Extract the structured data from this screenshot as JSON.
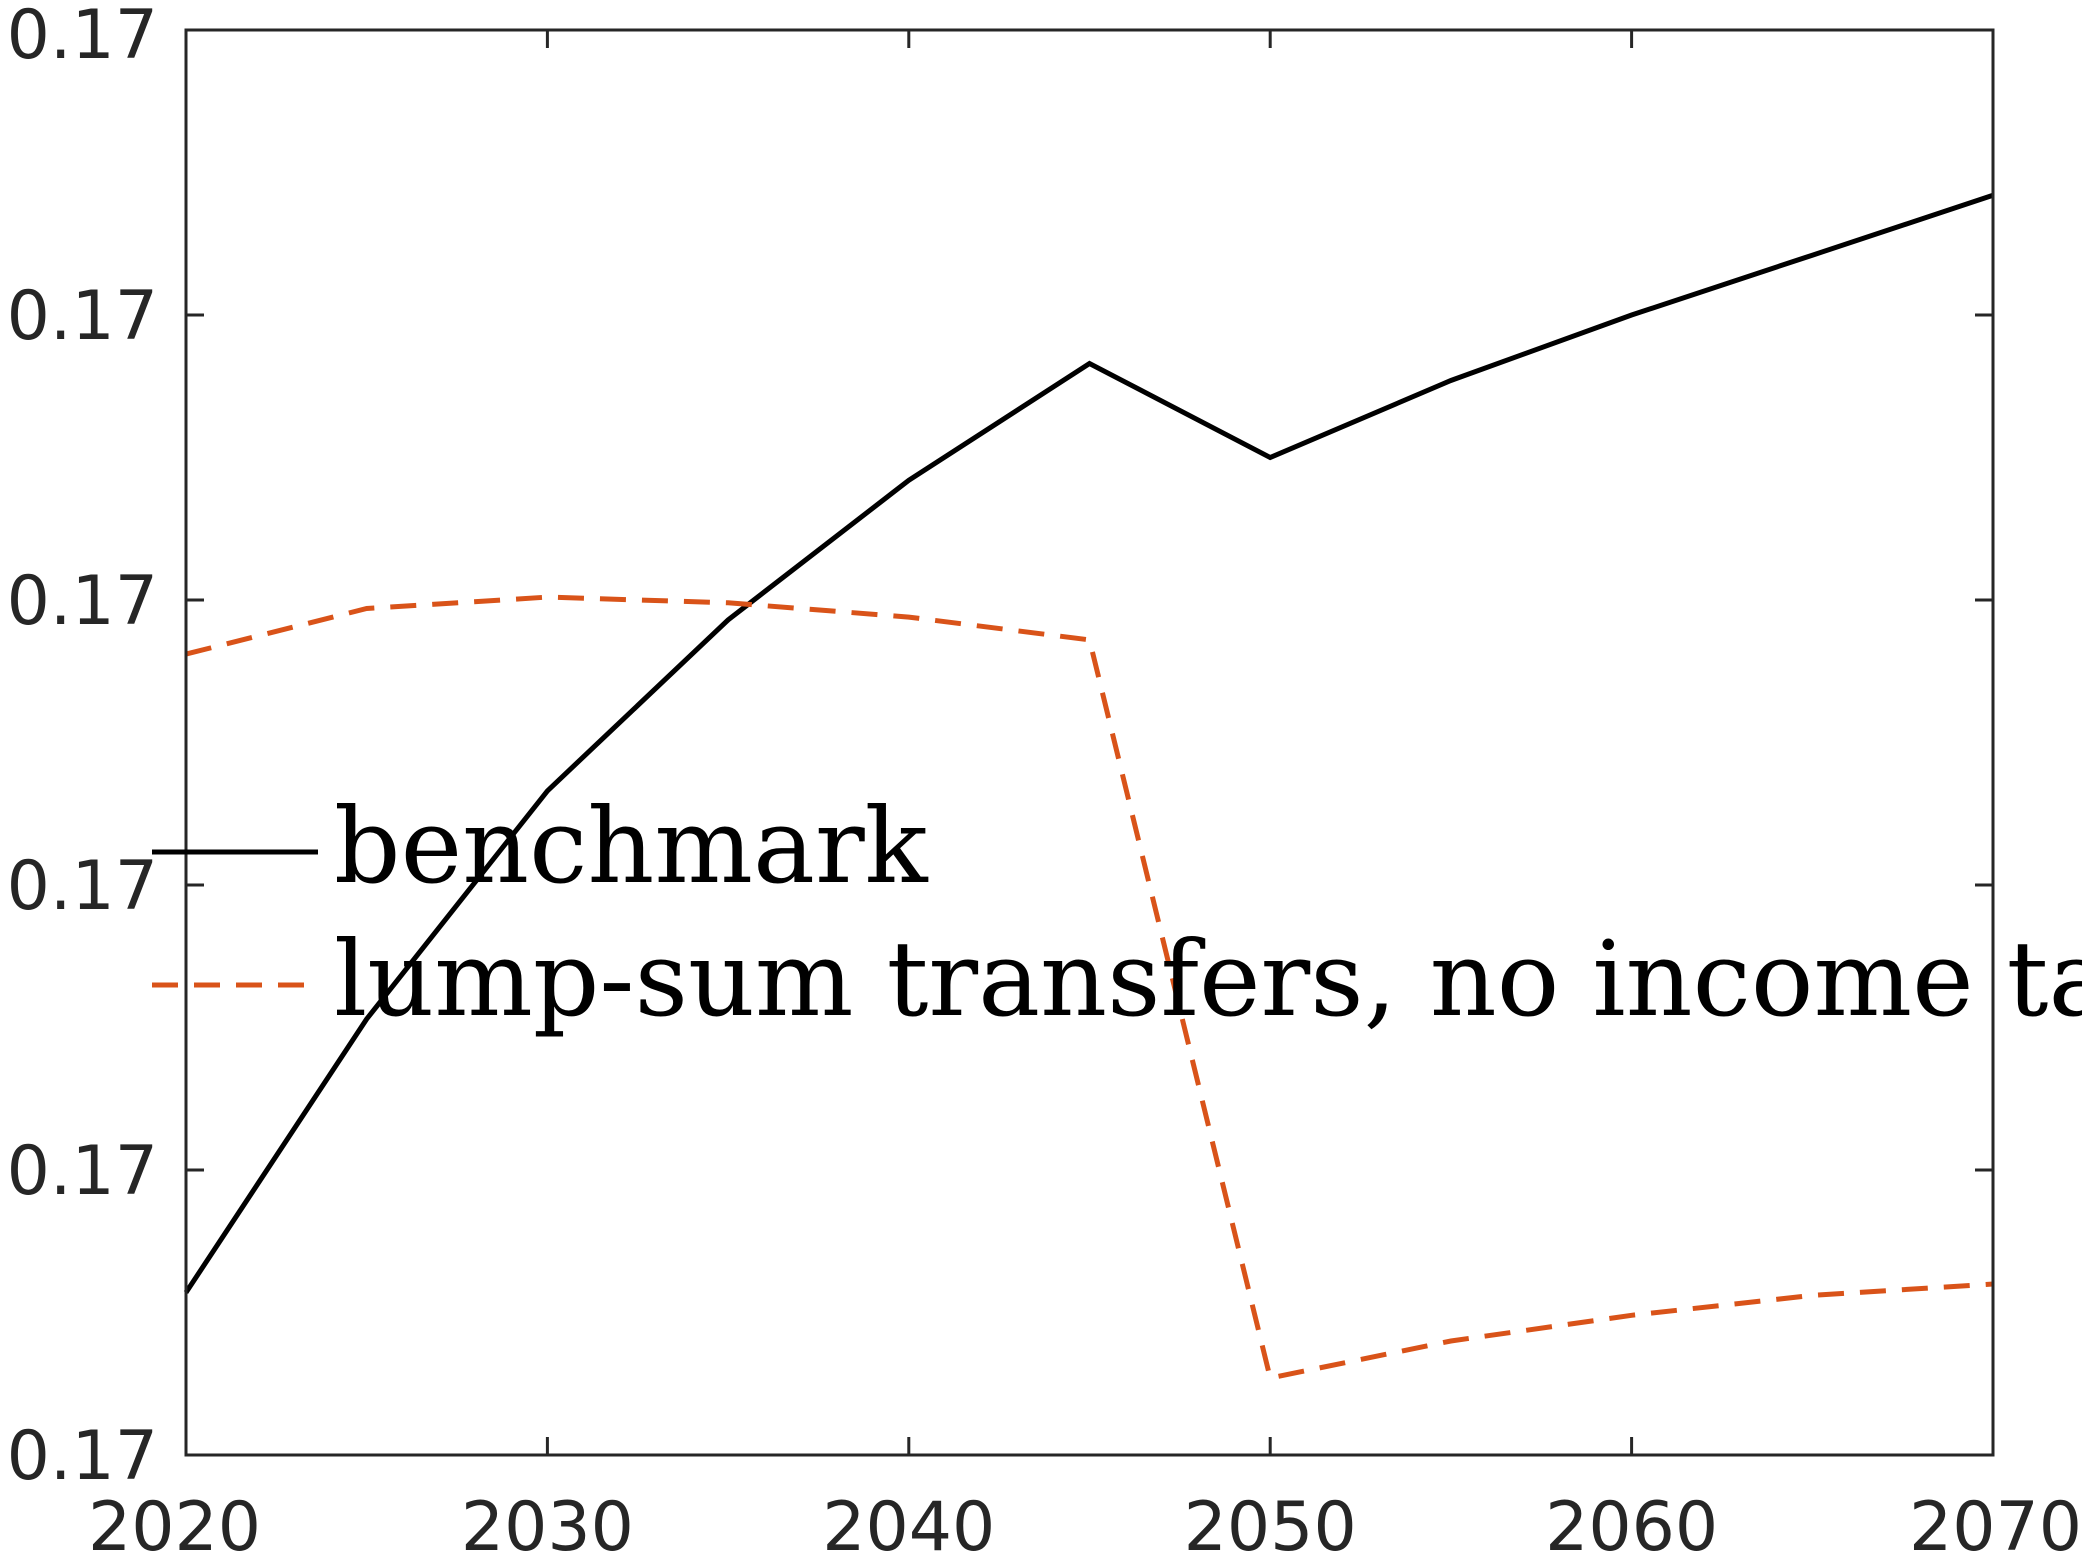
{
  "chart_data": {
    "type": "line",
    "x_ticks": [
      2020,
      2030,
      2040,
      2050,
      2060,
      2070
    ],
    "y_tick_labels": [
      "0.17",
      "0.17",
      "0.17",
      "0.17",
      "0.17",
      "0.17"
    ],
    "xlim": [
      2020,
      2070
    ],
    "ylim": [
      0,
      5
    ],
    "grid": false,
    "legend_position": "center-left",
    "series": [
      {
        "name": "benchmark",
        "color": "#000000",
        "style": "solid",
        "x": [
          2020,
          2025,
          2030,
          2035,
          2040,
          2045,
          2050,
          2055,
          2060,
          2065,
          2070
        ],
        "y": [
          0.57,
          1.53,
          2.33,
          2.93,
          3.42,
          3.83,
          3.5,
          3.77,
          4.0,
          4.21,
          4.42
        ]
      },
      {
        "name": "lump-sum transfers, no income tax",
        "color": "#D95319",
        "style": "dashed",
        "x": [
          2020,
          2025,
          2030,
          2035,
          2040,
          2045,
          2050,
          2055,
          2060,
          2065,
          2070
        ],
        "y": [
          2.81,
          2.97,
          3.01,
          2.99,
          2.94,
          2.86,
          0.27,
          0.4,
          0.49,
          0.56,
          0.6
        ]
      }
    ]
  }
}
